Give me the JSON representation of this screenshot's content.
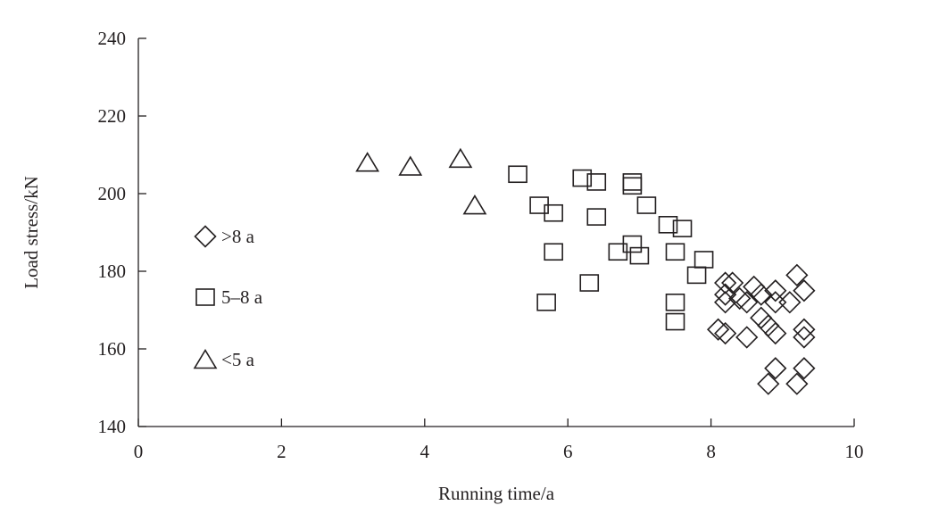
{
  "chart_data": {
    "type": "scatter",
    "xlabel": "Running time/a",
    "ylabel": "Load stress/kN",
    "xlim": [
      0,
      10
    ],
    "ylim": [
      140,
      240
    ],
    "x_ticks": [
      "0",
      "2",
      "4",
      "6",
      "8",
      "10"
    ],
    "y_ticks": [
      "140",
      "160",
      "180",
      "200",
      "220",
      "240"
    ],
    "grid": false,
    "legend_position": "left",
    "series": [
      {
        "name": ">8 a",
        "marker": "diamond",
        "points": [
          [
            8.2,
            177
          ],
          [
            8.3,
            177
          ],
          [
            8.2,
            174
          ],
          [
            8.2,
            172
          ],
          [
            8.4,
            173
          ],
          [
            8.5,
            172
          ],
          [
            8.6,
            176
          ],
          [
            8.7,
            174
          ],
          [
            8.7,
            168
          ],
          [
            8.9,
            175
          ],
          [
            8.9,
            172
          ],
          [
            9.1,
            172
          ],
          [
            9.2,
            179
          ],
          [
            9.3,
            175
          ],
          [
            8.1,
            165
          ],
          [
            8.2,
            164
          ],
          [
            8.5,
            163
          ],
          [
            8.8,
            166
          ],
          [
            8.9,
            164
          ],
          [
            9.3,
            165
          ],
          [
            9.3,
            163
          ],
          [
            8.9,
            155
          ],
          [
            9.3,
            155
          ],
          [
            8.8,
            151
          ],
          [
            9.2,
            151
          ]
        ]
      },
      {
        "name": "5–8 a",
        "marker": "square",
        "points": [
          [
            5.3,
            205
          ],
          [
            5.6,
            197
          ],
          [
            5.8,
            195
          ],
          [
            5.8,
            185
          ],
          [
            5.7,
            172
          ],
          [
            6.2,
            204
          ],
          [
            6.4,
            203
          ],
          [
            6.4,
            194
          ],
          [
            6.3,
            177
          ],
          [
            6.7,
            185
          ],
          [
            6.9,
            203
          ],
          [
            6.9,
            202
          ],
          [
            6.9,
            187
          ],
          [
            7.0,
            184
          ],
          [
            7.1,
            197
          ],
          [
            7.4,
            192
          ],
          [
            7.5,
            185
          ],
          [
            7.6,
            191
          ],
          [
            7.5,
            172
          ],
          [
            7.5,
            167
          ],
          [
            7.8,
            179
          ],
          [
            7.9,
            183
          ]
        ]
      },
      {
        "name": "<5 a",
        "marker": "triangle",
        "points": [
          [
            3.2,
            208
          ],
          [
            3.8,
            207
          ],
          [
            4.5,
            209
          ],
          [
            4.7,
            197
          ]
        ]
      }
    ]
  }
}
